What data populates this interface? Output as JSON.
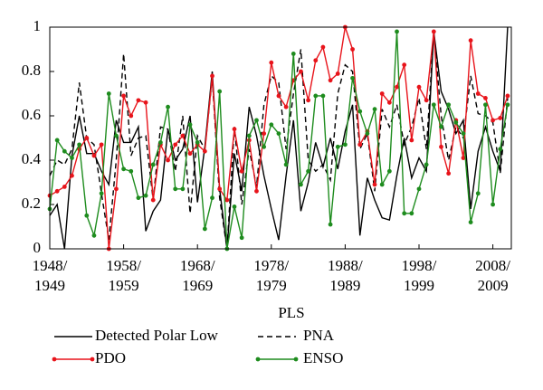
{
  "chart_data": {
    "type": "line",
    "x": [
      1948,
      1949,
      1950,
      1951,
      1952,
      1953,
      1954,
      1955,
      1956,
      1957,
      1958,
      1959,
      1960,
      1961,
      1962,
      1963,
      1964,
      1965,
      1966,
      1967,
      1968,
      1969,
      1970,
      1971,
      1972,
      1973,
      1974,
      1975,
      1976,
      1977,
      1978,
      1979,
      1980,
      1981,
      1982,
      1983,
      1984,
      1985,
      1986,
      1987,
      1988,
      1989,
      1990,
      1991,
      1992,
      1993,
      1994,
      1995,
      1996,
      1997,
      1998,
      1999,
      2000,
      2001,
      2002,
      2003,
      2004,
      2005,
      2006,
      2007,
      2008,
      2009,
      2010
    ],
    "xlim": [
      1948,
      2010.5
    ],
    "xticks": [
      {
        "value": 1948,
        "label": "1948/\n1949"
      },
      {
        "value": 1958,
        "label": "1958/\n1959"
      },
      {
        "value": 1968,
        "label": "1968/\n1969"
      },
      {
        "value": 1978,
        "label": "1978/\n1979"
      },
      {
        "value": 1988,
        "label": "1988/\n1989"
      },
      {
        "value": 1998,
        "label": "1998/\n1999"
      },
      {
        "value": 2008,
        "label": "2008/\n2009"
      }
    ],
    "ylim": [
      0,
      1
    ],
    "yticks": [
      0,
      0.2,
      0.4,
      0.6,
      0.8,
      1
    ],
    "legend_title": "PLS",
    "series": [
      {
        "name": "Detected Polar Low",
        "color": "#000000",
        "linestyle": "solid",
        "markers": false,
        "values": [
          0.15,
          0.2,
          0.0,
          0.42,
          0.6,
          0.43,
          0.43,
          0.35,
          0.29,
          0.58,
          0.48,
          0.48,
          0.55,
          0.08,
          0.17,
          0.22,
          0.54,
          0.4,
          0.45,
          0.6,
          0.21,
          0.46,
          0.8,
          0.27,
          0.0,
          0.43,
          0.26,
          0.64,
          0.51,
          0.33,
          0.18,
          0.04,
          0.33,
          0.58,
          0.17,
          0.3,
          0.48,
          0.37,
          0.5,
          0.36,
          0.53,
          0.65,
          0.06,
          0.32,
          0.22,
          0.14,
          0.13,
          0.33,
          0.5,
          0.32,
          0.41,
          0.35,
          0.98,
          0.71,
          0.63,
          0.52,
          0.58,
          0.18,
          0.44,
          0.55,
          0.44,
          0.35,
          1.0
        ]
      },
      {
        "name": "PNA",
        "color": "#000000",
        "linestyle": "dashed",
        "markers": false,
        "values": [
          0.33,
          0.4,
          0.38,
          0.45,
          0.75,
          0.5,
          0.47,
          0.25,
          0.04,
          0.4,
          0.88,
          0.42,
          0.5,
          0.51,
          0.22,
          0.55,
          0.54,
          0.35,
          0.6,
          0.16,
          0.51,
          0.45,
          0.77,
          0.23,
          0.0,
          0.55,
          0.2,
          0.45,
          0.28,
          0.65,
          0.78,
          0.75,
          0.45,
          0.7,
          0.9,
          0.4,
          0.35,
          0.38,
          0.31,
          0.7,
          0.83,
          0.8,
          0.45,
          0.52,
          0.26,
          0.63,
          0.55,
          0.65,
          0.47,
          0.55,
          0.68,
          0.45,
          0.98,
          0.6,
          0.4,
          0.55,
          0.5,
          0.78,
          0.61,
          0.6,
          0.57,
          0.34,
          0.68
        ]
      },
      {
        "name": "PDO",
        "color": "#e8141b",
        "linestyle": "solid",
        "markers": true,
        "values": [
          0.24,
          0.26,
          0.28,
          0.33,
          0.45,
          0.5,
          0.42,
          0.47,
          0.0,
          0.27,
          0.69,
          0.6,
          0.67,
          0.66,
          0.22,
          0.47,
          0.4,
          0.47,
          0.51,
          0.43,
          0.47,
          0.44,
          0.78,
          0.27,
          0.22,
          0.54,
          0.35,
          0.49,
          0.26,
          0.52,
          0.84,
          0.69,
          0.64,
          0.76,
          0.8,
          0.67,
          0.85,
          0.91,
          0.76,
          0.79,
          1.0,
          0.9,
          0.47,
          0.53,
          0.29,
          0.7,
          0.66,
          0.73,
          0.83,
          0.49,
          0.73,
          0.67,
          0.98,
          0.46,
          0.34,
          0.58,
          0.41,
          0.94,
          0.7,
          0.68,
          0.58,
          0.59,
          0.69
        ]
      },
      {
        "name": "ENSO",
        "color": "#1e8c1e",
        "linestyle": "solid",
        "markers": true,
        "values": [
          0.18,
          0.49,
          0.44,
          0.41,
          0.47,
          0.15,
          0.06,
          0.25,
          0.7,
          0.51,
          0.36,
          0.35,
          0.23,
          0.24,
          0.38,
          0.48,
          0.64,
          0.27,
          0.27,
          0.56,
          0.48,
          0.09,
          0.23,
          0.71,
          0.0,
          0.19,
          0.05,
          0.51,
          0.58,
          0.46,
          0.56,
          0.52,
          0.38,
          0.88,
          0.29,
          0.35,
          0.69,
          0.69,
          0.11,
          0.46,
          0.47,
          0.77,
          0.62,
          0.52,
          0.63,
          0.29,
          0.35,
          0.98,
          0.16,
          0.16,
          0.27,
          0.38,
          0.65,
          0.55,
          0.65,
          0.57,
          0.52,
          0.12,
          0.25,
          0.65,
          0.2,
          0.45,
          0.65
        ]
      }
    ]
  }
}
